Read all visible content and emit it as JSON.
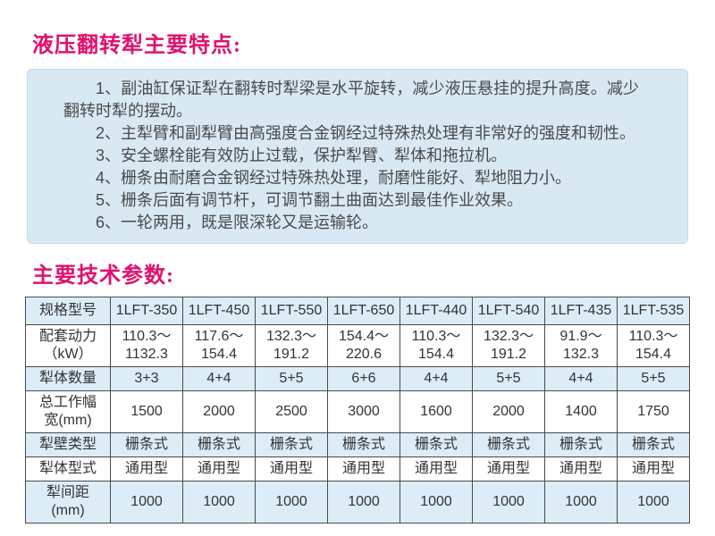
{
  "titles": {
    "features": "液压翻转犁主要特点:",
    "params": "主要技术参数:"
  },
  "features": [
    "1、副油缸保证犁在翻转时犁梁是水平旋转，减少液压悬挂的提升高度。减少翻转时犁的摆动。",
    "2、主犁臂和副犁臂由高强度合金钢经过特殊热处理有非常好的强度和韧性。",
    "3、安全螺栓能有效防止过载，保护犁臂、犁体和拖拉机。",
    "4、栅条由耐磨合金钢经过特殊热处理，耐磨性能好、犁地阻力小。",
    "5、栅条后面有调节杆，可调节翻土曲面达到最佳作业效果。",
    "6、一轮两用，既是限深轮又是运输轮。"
  ],
  "spec_table": {
    "corner_label": "规格型号",
    "models": [
      "1LFT-350",
      "1LFT-450",
      "1LFT-550",
      "1LFT-650",
      "1LFT-440",
      "1LFT-540",
      "1LFT-435",
      "1LFT-535"
    ],
    "rows": [
      {
        "label": "配套动力\n（kW）",
        "values": [
          "110.3～\n1132.3",
          "117.6～\n154.4",
          "132.3～\n191.2",
          "154.4～\n220.6",
          "110.3～\n154.4",
          "132.3～\n191.2",
          "91.9～\n132.3",
          "110.3～\n154.4"
        ]
      },
      {
        "label": "犁体数量",
        "values": [
          "3+3",
          "4+4",
          "5+5",
          "6+6",
          "4+4",
          "5+5",
          "4+4",
          "5+5"
        ]
      },
      {
        "label": "总工作幅\n宽(mm)",
        "values": [
          "1500",
          "2000",
          "2500",
          "3000",
          "1600",
          "2000",
          "1400",
          "1750"
        ]
      },
      {
        "label": "犁壁类型",
        "values": [
          "栅条式",
          "栅条式",
          "栅条式",
          "栅条式",
          "栅条式",
          "栅条式",
          "栅条式",
          "栅条式"
        ]
      },
      {
        "label": "犁体型式",
        "values": [
          "通用型",
          "通用型",
          "通用型",
          "通用型",
          "通用型",
          "通用型",
          "通用型",
          "通用型"
        ]
      },
      {
        "label": "犁间距\n(mm)",
        "values": [
          "1000",
          "1000",
          "1000",
          "1000",
          "1000",
          "1000",
          "1000",
          "1000"
        ]
      }
    ]
  },
  "colors": {
    "accent": "#e0106e",
    "panel_bg": "#d8e9f4",
    "table_stripe": "#dcedf8",
    "table_border": "#4a4a4a"
  }
}
